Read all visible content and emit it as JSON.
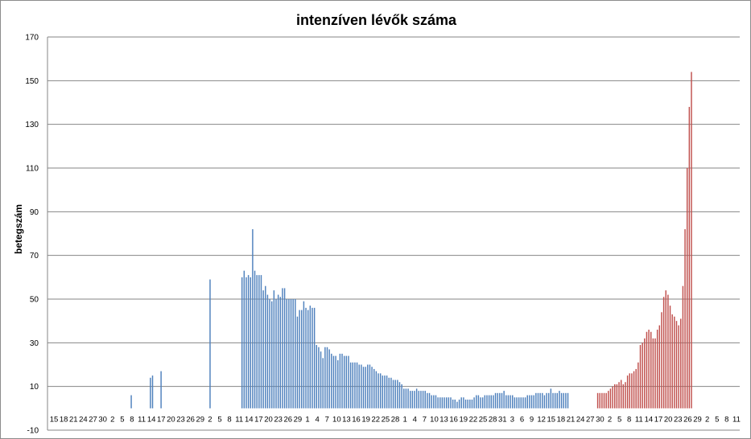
{
  "chart_data": {
    "type": "bar",
    "title": "intenzíven lévők száma",
    "ylabel": "betegszám",
    "xlabel": "",
    "ylim": [
      -10,
      170
    ],
    "yticks": [
      -10,
      10,
      30,
      50,
      70,
      90,
      110,
      130,
      150,
      170
    ],
    "xtick_labels": [
      "15",
      "18",
      "21",
      "24",
      "27",
      "30",
      "2",
      "5",
      "8",
      "11",
      "14",
      "17",
      "20",
      "23",
      "26",
      "29",
      "2",
      "5",
      "8",
      "11",
      "14",
      "17",
      "20",
      "23",
      "26",
      "29",
      "1",
      "4",
      "7",
      "10",
      "13",
      "16",
      "19",
      "22",
      "25",
      "28",
      "1",
      "4",
      "7",
      "10",
      "13",
      "16",
      "19",
      "22",
      "25",
      "28",
      "31",
      "3",
      "6",
      "9",
      "12",
      "15",
      "18",
      "21",
      "24",
      "27",
      "30",
      "2",
      "5",
      "8",
      "11",
      "14",
      "17",
      "20",
      "23",
      "26",
      "29",
      "2",
      "5",
      "8",
      "11"
    ],
    "grid": "horizontal",
    "legend": "none",
    "colors": {
      "first_wave": "#4f81bd",
      "second_wave": "#c0504d",
      "gridline": "#868686"
    },
    "series": [
      {
        "color": "#4f81bd",
        "values": [
          0,
          0,
          0,
          0,
          0,
          0,
          0,
          0,
          0,
          0,
          0,
          0,
          0,
          0,
          0,
          0,
          0,
          0,
          0,
          0,
          0,
          0,
          0,
          0,
          0,
          0,
          0,
          0,
          0,
          0,
          0,
          0,
          0,
          0,
          0,
          0,
          0,
          0,
          0,
          6,
          0,
          0,
          0,
          0,
          0,
          0,
          0,
          0,
          14,
          15,
          0,
          0,
          0,
          17,
          0,
          0,
          0,
          0,
          0,
          0,
          0,
          0,
          0,
          0,
          0,
          0,
          0,
          0,
          0,
          0,
          0,
          0,
          0,
          0,
          0,
          0,
          59,
          0,
          0,
          0,
          0,
          0,
          0,
          0,
          0,
          0,
          0,
          0,
          0,
          0,
          0,
          60,
          63,
          60,
          61,
          60,
          82,
          63,
          61,
          61,
          61,
          54,
          56,
          52,
          50,
          49,
          54,
          50,
          52,
          51,
          55,
          55,
          50,
          50,
          50,
          50,
          50,
          42,
          45,
          45,
          49,
          46,
          45,
          47,
          46,
          46,
          29,
          28,
          26,
          23,
          28,
          28,
          27,
          25,
          24,
          24,
          22,
          25,
          25,
          24,
          24,
          24,
          21,
          21,
          21,
          21,
          20,
          20,
          19,
          19,
          20,
          20,
          19,
          18,
          17,
          16,
          16,
          15,
          15,
          15,
          14,
          14,
          13,
          13,
          13,
          12,
          11,
          9,
          9,
          9,
          8,
          8,
          8,
          9,
          8,
          8,
          8,
          8,
          7,
          7,
          6,
          6,
          6,
          5,
          5,
          5,
          5,
          5,
          5,
          5,
          4,
          4,
          3,
          4,
          5,
          5,
          4,
          4,
          4,
          4,
          5,
          6,
          6,
          5,
          5,
          6,
          6,
          6,
          6,
          6,
          7,
          7,
          7,
          7,
          8,
          6,
          6,
          6,
          6,
          5,
          5,
          5,
          5,
          5,
          5,
          6,
          6,
          6,
          6,
          7,
          7,
          7,
          7,
          6,
          7,
          7,
          9,
          7,
          7,
          7,
          8,
          7,
          7,
          7,
          7,
          0,
          0,
          0,
          0,
          0,
          0,
          0,
          0,
          0,
          0,
          0,
          0,
          0,
          0,
          0,
          0,
          0,
          0,
          0,
          0,
          0,
          0,
          0,
          0,
          0,
          0,
          0,
          0,
          0,
          0,
          0,
          0,
          0,
          0,
          0,
          0,
          0,
          0,
          0,
          0,
          0,
          0,
          0,
          0,
          0,
          0,
          0,
          0,
          0,
          0,
          0,
          0,
          0,
          0,
          0,
          0,
          0,
          0,
          0,
          0,
          0,
          0,
          0,
          0,
          0,
          0,
          0,
          0,
          0,
          0,
          0,
          0,
          0,
          0,
          0,
          0,
          0,
          0,
          0,
          0
        ]
      },
      {
        "color": "#c0504d",
        "values": [
          0,
          0,
          0,
          0,
          0,
          0,
          0,
          0,
          0,
          0,
          0,
          0,
          0,
          0,
          0,
          0,
          0,
          0,
          0,
          0,
          0,
          0,
          0,
          0,
          0,
          0,
          0,
          0,
          0,
          0,
          0,
          0,
          0,
          0,
          0,
          0,
          0,
          0,
          0,
          0,
          0,
          0,
          0,
          0,
          0,
          0,
          0,
          0,
          0,
          0,
          0,
          0,
          0,
          0,
          0,
          0,
          0,
          0,
          0,
          0,
          0,
          0,
          0,
          0,
          0,
          0,
          0,
          0,
          0,
          0,
          0,
          0,
          0,
          0,
          0,
          0,
          0,
          0,
          0,
          0,
          0,
          0,
          0,
          0,
          0,
          0,
          0,
          0,
          0,
          0,
          0,
          0,
          0,
          0,
          0,
          0,
          0,
          0,
          0,
          0,
          0,
          0,
          0,
          0,
          0,
          0,
          0,
          0,
          0,
          0,
          0,
          0,
          0,
          0,
          0,
          0,
          0,
          0,
          0,
          0,
          0,
          0,
          0,
          0,
          0,
          0,
          0,
          0,
          0,
          0,
          0,
          0,
          0,
          0,
          0,
          0,
          0,
          0,
          0,
          0,
          0,
          0,
          0,
          0,
          0,
          0,
          0,
          0,
          0,
          0,
          0,
          0,
          0,
          0,
          0,
          0,
          0,
          0,
          0,
          0,
          0,
          0,
          0,
          0,
          0,
          0,
          0,
          0,
          0,
          0,
          0,
          0,
          0,
          0,
          0,
          0,
          0,
          0,
          0,
          0,
          0,
          0,
          0,
          0,
          0,
          0,
          0,
          0,
          0,
          0,
          0,
          0,
          0,
          0,
          0,
          0,
          0,
          0,
          0,
          0,
          0,
          0,
          0,
          0,
          0,
          0,
          0,
          0,
          0,
          0,
          0,
          0,
          0,
          0,
          0,
          0,
          0,
          0,
          0,
          0,
          0,
          0,
          0,
          0,
          0,
          0,
          0,
          0,
          0,
          0,
          0,
          0,
          0,
          0,
          0,
          0,
          0,
          0,
          0,
          0,
          0,
          0,
          0,
          0,
          0,
          0,
          0,
          0,
          0,
          0,
          0,
          0,
          0,
          0,
          0,
          0,
          0,
          0,
          7,
          7,
          7,
          7,
          7,
          8,
          9,
          10,
          11,
          11,
          12,
          13,
          11,
          12,
          15,
          16,
          16,
          17,
          18,
          21,
          29,
          30,
          32,
          35,
          36,
          35,
          32,
          32,
          36,
          38,
          44,
          51,
          54,
          52,
          47,
          43,
          42,
          40,
          38,
          41,
          56,
          82,
          110,
          138,
          154
        ]
      }
    ]
  }
}
